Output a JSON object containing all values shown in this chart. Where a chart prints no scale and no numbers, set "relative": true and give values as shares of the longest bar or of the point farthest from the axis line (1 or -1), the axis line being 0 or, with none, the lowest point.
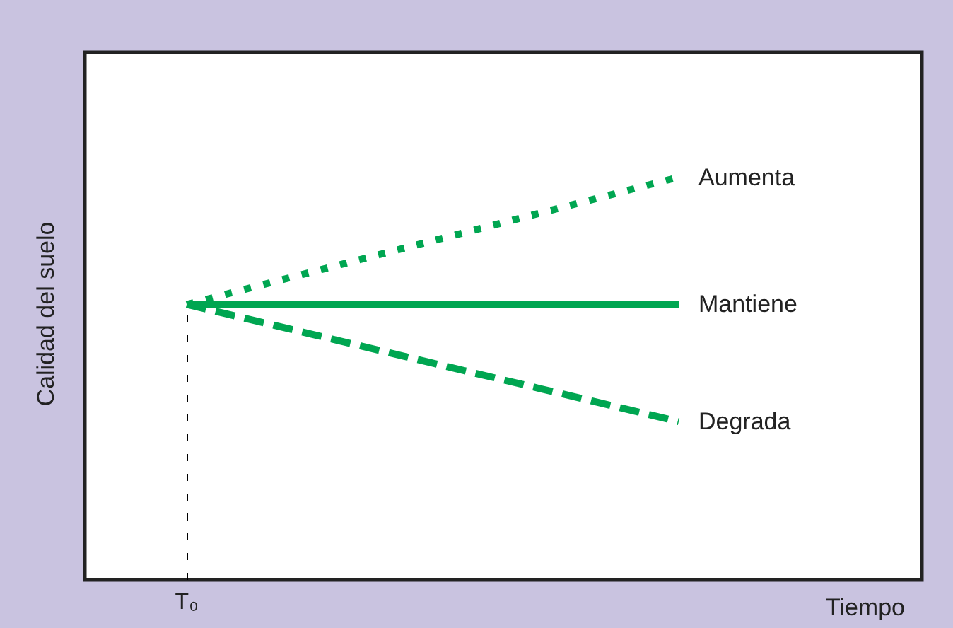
{
  "chart_data": {
    "type": "line",
    "relative": true,
    "xlabel": "Tiempo",
    "ylabel": "Calidad del suelo",
    "categories": [
      null,
      null
    ],
    "series": [
      {
        "name": "Aumenta",
        "color": "#00a651",
        "line_style": "dotted",
        "values": [
          0.684,
          1
        ]
      },
      {
        "name": "Mantiene",
        "color": "#00a651",
        "line_style": "solid",
        "values": [
          0.684,
          0.684
        ]
      },
      {
        "name": "Degrada",
        "color": "#00a651",
        "line_style": "dashed",
        "values": [
          0.684,
          0.393
        ]
      }
    ],
    "ref_lines": [
      {
        "axis": "x",
        "label": "T₀",
        "line_style": "dotted",
        "color": "#000000"
      }
    ],
    "legend": false,
    "marker": "none",
    "grid": false
  }
}
